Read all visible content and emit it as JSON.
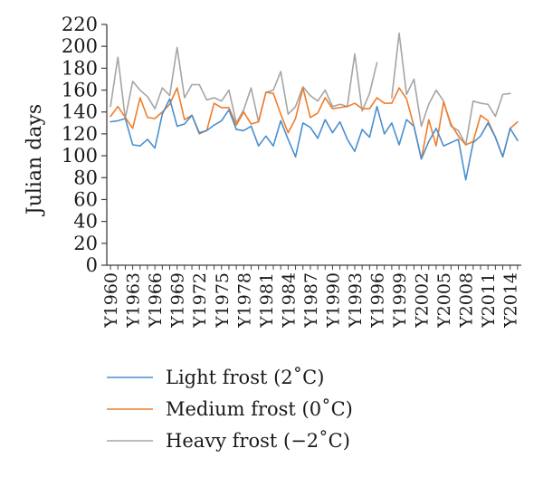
{
  "chart_data": {
    "type": "line",
    "xlabel": "",
    "ylabel": "Julian days",
    "ylim": [
      0,
      220
    ],
    "yticks": [
      0,
      20,
      40,
      60,
      80,
      100,
      120,
      140,
      160,
      180,
      200,
      220
    ],
    "x": [
      "Y1960",
      "Y1961",
      "Y1962",
      "Y1963",
      "Y1964",
      "Y1965",
      "Y1966",
      "Y1967",
      "Y1968",
      "Y1969",
      "Y1970",
      "Y1971",
      "Y1972",
      "Y1973",
      "Y1974",
      "Y1975",
      "Y1976",
      "Y1977",
      "Y1978",
      "Y1979",
      "Y1980",
      "Y1981",
      "Y1982",
      "Y1983",
      "Y1984",
      "Y1985",
      "Y1986",
      "Y1987",
      "Y1988",
      "Y1989",
      "Y1990",
      "Y1991",
      "Y1992",
      "Y1993",
      "Y1994",
      "Y1995",
      "Y1996",
      "Y1997",
      "Y1998",
      "Y1999",
      "Y2000",
      "Y2001",
      "Y2002",
      "Y2003",
      "Y2004",
      "Y2005",
      "Y2006",
      "Y2007",
      "Y2008",
      "Y2009",
      "Y2010",
      "Y2011",
      "Y2012",
      "Y2013",
      "Y2014",
      "Y2015"
    ],
    "xtick_labels": [
      "Y1960",
      "Y1963",
      "Y1966",
      "Y1969",
      "Y1972",
      "Y1975",
      "Y1978",
      "Y1981",
      "Y1984",
      "Y1987",
      "Y1990",
      "Y1993",
      "Y1996",
      "Y1999",
      "Y2002",
      "Y2005",
      "Y2008",
      "Y2011",
      "Y2014"
    ],
    "grid": false,
    "legend_position": "bottom",
    "series": [
      {
        "name": "Light frost (2˚C)",
        "color": "#4a8fd0",
        "values": [
          131,
          132,
          134,
          110,
          109,
          115,
          107,
          138,
          152,
          127,
          129,
          137,
          121,
          123,
          128,
          132,
          142,
          124,
          123,
          127,
          109,
          118,
          109,
          132,
          115,
          99,
          130,
          126,
          116,
          133,
          121,
          131,
          115,
          104,
          124,
          117,
          145,
          120,
          130,
          110,
          133,
          127,
          97,
          113,
          125,
          109,
          112,
          115,
          78,
          112,
          118,
          130,
          117,
          99,
          125,
          114
        ]
      },
      {
        "name": "Medium frost (0˚C)",
        "color": "#f07d2c",
        "values": [
          136,
          145,
          135,
          125,
          153,
          135,
          134,
          140,
          147,
          162,
          133,
          137,
          120,
          123,
          148,
          144,
          144,
          128,
          140,
          129,
          131,
          158,
          157,
          138,
          121,
          134,
          162,
          135,
          139,
          153,
          143,
          144,
          145,
          148,
          143,
          143,
          153,
          148,
          148,
          162,
          152,
          127,
          97,
          133,
          109,
          149,
          129,
          118,
          110,
          113,
          137,
          132,
          117,
          99,
          125,
          131
        ]
      },
      {
        "name": "Heavy frost (−2˚C)",
        "color": "#a5a5a5",
        "values": [
          145,
          190,
          134,
          168,
          160,
          154,
          143,
          162,
          155,
          199,
          153,
          165,
          165,
          151,
          153,
          150,
          160,
          130,
          142,
          162,
          131,
          158,
          160,
          177,
          138,
          145,
          163,
          155,
          150,
          160,
          145,
          147,
          145,
          193,
          141,
          157,
          185,
          null,
          153,
          212,
          156,
          170,
          127,
          147,
          160,
          150,
          127,
          123,
          110,
          150,
          148,
          147,
          136,
          156,
          157,
          null
        ]
      }
    ]
  }
}
